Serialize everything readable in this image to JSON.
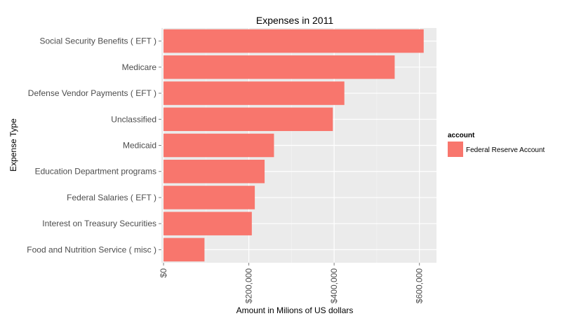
{
  "chart_data": {
    "type": "bar",
    "orientation": "horizontal",
    "title": "Expenses  in 2011",
    "xlabel": "Amount in Milions of US dollars",
    "ylabel": "Expense Type",
    "categories": [
      "Social Security Benefits ( EFT )",
      "Medicare",
      "Defense Vendor Payments ( EFT )",
      "Unclassified",
      "Medicaid",
      "Education Department programs",
      "Federal Salaries ( EFT )",
      "Interest on Treasury Securities",
      "Food and Nutrition Service ( misc )"
    ],
    "series": [
      {
        "name": "Federal Reserve Account",
        "color": "#F8766D",
        "values": [
          610000,
          542000,
          424000,
          397000,
          259000,
          237000,
          214000,
          207000,
          96000
        ]
      }
    ],
    "xlim": [
      -5000,
      640000
    ],
    "xticks": [
      0,
      200000,
      400000,
      600000
    ],
    "xtick_labels": [
      "$0",
      "$200,000",
      "$400,000",
      "$600,000"
    ],
    "grid": true,
    "legend": {
      "title": "account",
      "position": "right"
    }
  }
}
